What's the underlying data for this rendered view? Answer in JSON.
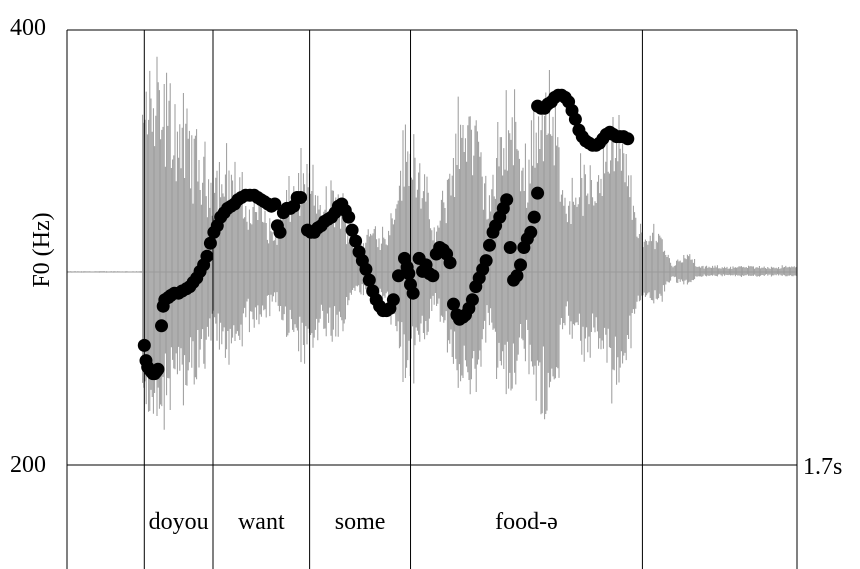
{
  "chart_data": {
    "type": "scatter",
    "title": "",
    "ylabel": "F0 (Hz)",
    "xlabel": "",
    "y_ticks": [
      "400",
      "200"
    ],
    "x_end_label": "1.7s",
    "ylim": [
      200,
      400
    ],
    "xlim": [
      0,
      1.7
    ],
    "words": [
      {
        "text": "doyou",
        "start": 0.18,
        "end": 0.34
      },
      {
        "text": "want",
        "start": 0.34,
        "end": 0.565
      },
      {
        "text": "some",
        "start": 0.565,
        "end": 0.8
      },
      {
        "text": "food-ə",
        "start": 0.8,
        "end": 1.34
      }
    ],
    "f0_points": [
      [
        0.18,
        255
      ],
      [
        0.184,
        248
      ],
      [
        0.188,
        245
      ],
      [
        0.192,
        244
      ],
      [
        0.196,
        243
      ],
      [
        0.2,
        242
      ],
      [
        0.204,
        242
      ],
      [
        0.208,
        243
      ],
      [
        0.212,
        244
      ],
      [
        0.22,
        264
      ],
      [
        0.224,
        273
      ],
      [
        0.228,
        276
      ],
      [
        0.236,
        277
      ],
      [
        0.242,
        278
      ],
      [
        0.25,
        279
      ],
      [
        0.26,
        279
      ],
      [
        0.268,
        280
      ],
      [
        0.278,
        281
      ],
      [
        0.286,
        282
      ],
      [
        0.294,
        284
      ],
      [
        0.302,
        286
      ],
      [
        0.31,
        289
      ],
      [
        0.318,
        292
      ],
      [
        0.326,
        296
      ],
      [
        0.334,
        302
      ],
      [
        0.342,
        307
      ],
      [
        0.35,
        310
      ],
      [
        0.358,
        314
      ],
      [
        0.366,
        316
      ],
      [
        0.374,
        318
      ],
      [
        0.382,
        319
      ],
      [
        0.39,
        320
      ],
      [
        0.398,
        322
      ],
      [
        0.406,
        323
      ],
      [
        0.416,
        324
      ],
      [
        0.426,
        324
      ],
      [
        0.436,
        324
      ],
      [
        0.444,
        323
      ],
      [
        0.452,
        322
      ],
      [
        0.46,
        321
      ],
      [
        0.468,
        320
      ],
      [
        0.476,
        319
      ],
      [
        0.484,
        320
      ],
      [
        0.49,
        310
      ],
      [
        0.496,
        307
      ],
      [
        0.504,
        316
      ],
      [
        0.512,
        318
      ],
      [
        0.52,
        318
      ],
      [
        0.528,
        319
      ],
      [
        0.536,
        323
      ],
      [
        0.544,
        323
      ],
      [
        0.56,
        308
      ],
      [
        0.568,
        307
      ],
      [
        0.576,
        307
      ],
      [
        0.584,
        309
      ],
      [
        0.592,
        310
      ],
      [
        0.6,
        312
      ],
      [
        0.608,
        313
      ],
      [
        0.616,
        314
      ],
      [
        0.624,
        316
      ],
      [
        0.632,
        319
      ],
      [
        0.64,
        320
      ],
      [
        0.648,
        317
      ],
      [
        0.656,
        314
      ],
      [
        0.664,
        308
      ],
      [
        0.672,
        303
      ],
      [
        0.68,
        298
      ],
      [
        0.688,
        294
      ],
      [
        0.696,
        290
      ],
      [
        0.704,
        285
      ],
      [
        0.712,
        280
      ],
      [
        0.72,
        276
      ],
      [
        0.728,
        273
      ],
      [
        0.736,
        271
      ],
      [
        0.744,
        271
      ],
      [
        0.752,
        272
      ],
      [
        0.76,
        276
      ],
      [
        0.772,
        287
      ],
      [
        0.786,
        295
      ],
      [
        0.792,
        291
      ],
      [
        0.796,
        288
      ],
      [
        0.8,
        283
      ],
      [
        0.806,
        279
      ],
      [
        0.82,
        295
      ],
      [
        0.828,
        289
      ],
      [
        0.836,
        292
      ],
      [
        0.844,
        288
      ],
      [
        0.852,
        287
      ],
      [
        0.86,
        297
      ],
      [
        0.868,
        300
      ],
      [
        0.876,
        299
      ],
      [
        0.884,
        297
      ],
      [
        0.892,
        293
      ],
      [
        0.9,
        274
      ],
      [
        0.908,
        269
      ],
      [
        0.914,
        267
      ],
      [
        0.922,
        268
      ],
      [
        0.928,
        269
      ],
      [
        0.936,
        272
      ],
      [
        0.944,
        276
      ],
      [
        0.952,
        282
      ],
      [
        0.96,
        286
      ],
      [
        0.968,
        290
      ],
      [
        0.976,
        294
      ],
      [
        0.984,
        301
      ],
      [
        0.992,
        307
      ],
      [
        0.998,
        310
      ],
      [
        1.008,
        314
      ],
      [
        1.016,
        318
      ],
      [
        1.024,
        322
      ],
      [
        1.032,
        300
      ],
      [
        1.04,
        285
      ],
      [
        1.048,
        287
      ],
      [
        1.056,
        292
      ],
      [
        1.064,
        300
      ],
      [
        1.072,
        304
      ],
      [
        1.08,
        307
      ],
      [
        1.088,
        314
      ],
      [
        1.096,
        325
      ],
      [
        1.096,
        365
      ],
      [
        1.104,
        364
      ],
      [
        1.112,
        364
      ],
      [
        1.12,
        366
      ],
      [
        1.128,
        367
      ],
      [
        1.136,
        369
      ],
      [
        1.144,
        370
      ],
      [
        1.152,
        370
      ],
      [
        1.16,
        369
      ],
      [
        1.168,
        367
      ],
      [
        1.176,
        363
      ],
      [
        1.184,
        359
      ],
      [
        1.192,
        354
      ],
      [
        1.2,
        351
      ],
      [
        1.208,
        349
      ],
      [
        1.216,
        348
      ],
      [
        1.224,
        347
      ],
      [
        1.232,
        347
      ],
      [
        1.24,
        348
      ],
      [
        1.248,
        350
      ],
      [
        1.256,
        352
      ],
      [
        1.264,
        353
      ],
      [
        1.272,
        352
      ],
      [
        1.28,
        351
      ],
      [
        1.288,
        351
      ],
      [
        1.296,
        351
      ],
      [
        1.306,
        350
      ]
    ]
  }
}
